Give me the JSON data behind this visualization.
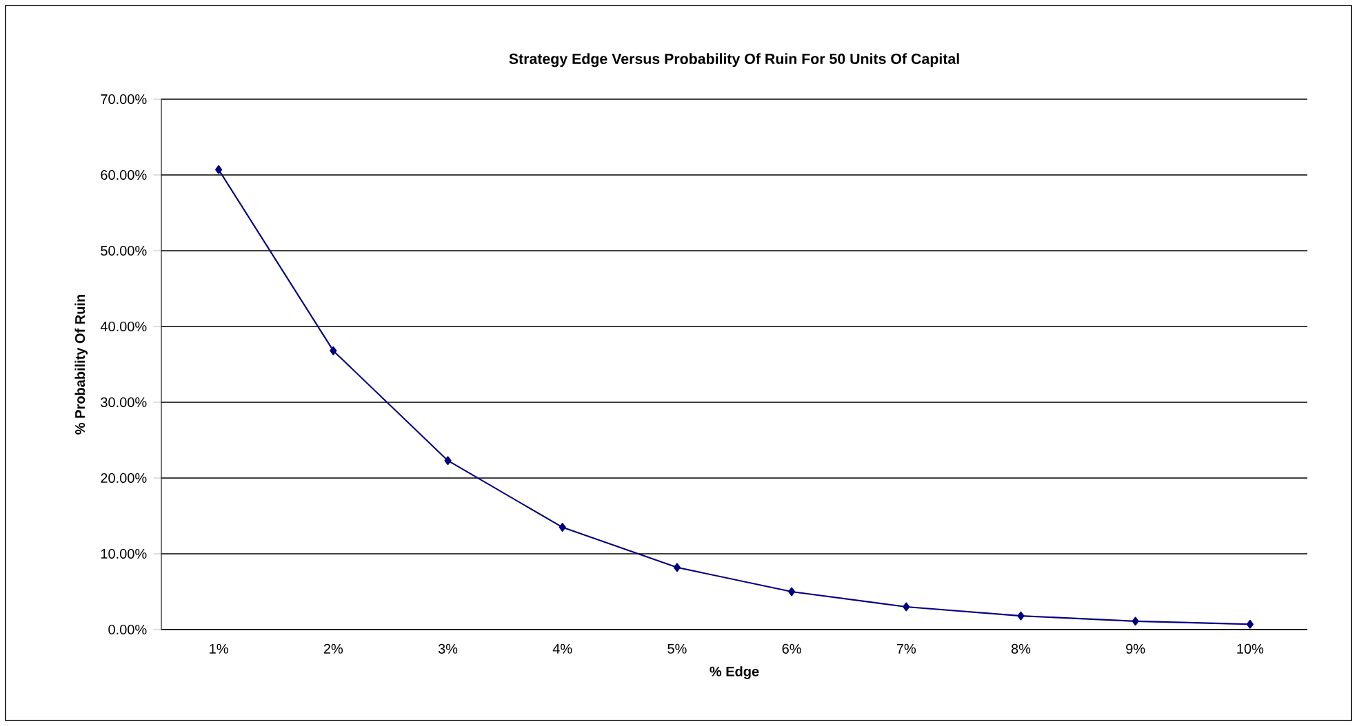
{
  "chart_data": {
    "type": "line",
    "title": "Strategy Edge Versus Probability Of Ruin For 50 Units Of Capital",
    "xlabel": "% Edge",
    "ylabel": "% Probability Of Ruin",
    "categories": [
      "1%",
      "2%",
      "3%",
      "4%",
      "5%",
      "6%",
      "7%",
      "8%",
      "9%",
      "10%"
    ],
    "series": [
      {
        "color": "#000080",
        "values": [
          60.7,
          36.8,
          22.3,
          13.5,
          8.2,
          5.0,
          3.0,
          1.8,
          1.1,
          0.7
        ]
      }
    ],
    "ylim": [
      0,
      70
    ],
    "yticks": [
      {
        "value": 0,
        "label": "0.00%"
      },
      {
        "value": 10,
        "label": "10.00%"
      },
      {
        "value": 20,
        "label": "20.00%"
      },
      {
        "value": 30,
        "label": "30.00%"
      },
      {
        "value": 40,
        "label": "40.00%"
      },
      {
        "value": 50,
        "label": "50.00%"
      },
      {
        "value": 60,
        "label": "60.00%"
      },
      {
        "value": 70,
        "label": "70.00%"
      }
    ],
    "grid": "y",
    "marker": "diamond",
    "line_style": "solid"
  }
}
